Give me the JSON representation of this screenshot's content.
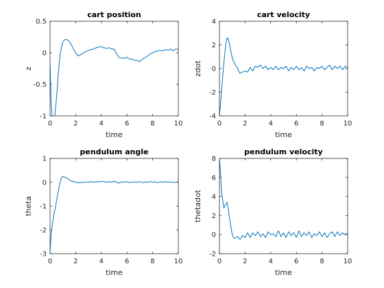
{
  "figure": {
    "background": "#ffffff",
    "line_color": "#0072bd",
    "axis_color": "#262626"
  },
  "chart_data": [
    {
      "id": "cart-position",
      "type": "line",
      "title": "cart position",
      "xlabel": "time",
      "ylabel": "z",
      "xlim": [
        0,
        10
      ],
      "ylim": [
        -1,
        0.5
      ],
      "xticks": [
        0,
        2,
        4,
        6,
        8,
        10
      ],
      "yticks": [
        -1,
        -0.5,
        0,
        0.5
      ],
      "ytick_labels": [
        "-1",
        "-0.5",
        "0",
        "0.5"
      ],
      "series": [
        {
          "x": [
            0,
            0.03,
            0.05,
            0.1,
            0.2,
            0.3,
            0.4,
            0.5,
            0.6,
            0.7,
            0.8,
            0.9,
            1.0,
            1.1,
            1.2,
            1.3,
            1.4,
            1.5,
            1.6,
            1.7,
            1.8,
            1.9,
            2.0,
            2.2,
            2.4,
            2.6,
            2.8,
            3.0,
            3.2,
            3.4,
            3.6,
            3.8,
            4.0,
            4.2,
            4.4,
            4.6,
            4.8,
            5.0,
            5.2,
            5.4,
            5.6,
            5.8,
            6.0,
            6.2,
            6.4,
            6.6,
            6.8,
            7.0,
            7.2,
            7.4,
            7.6,
            7.8,
            8.0,
            8.2,
            8.4,
            8.6,
            8.8,
            9.0,
            9.2,
            9.4,
            9.6,
            9.8,
            10.0
          ],
          "y": [
            -0.12,
            -0.35,
            -0.55,
            -0.85,
            -1.05,
            -1.08,
            -0.95,
            -0.72,
            -0.45,
            -0.2,
            -0.02,
            0.1,
            0.17,
            0.2,
            0.21,
            0.21,
            0.2,
            0.18,
            0.15,
            0.11,
            0.07,
            0.03,
            0.0,
            -0.05,
            -0.03,
            0.0,
            0.02,
            0.04,
            0.05,
            0.06,
            0.08,
            0.09,
            0.1,
            0.08,
            0.07,
            0.08,
            0.06,
            0.06,
            -0.02,
            -0.08,
            -0.08,
            -0.09,
            -0.07,
            -0.1,
            -0.1,
            -0.12,
            -0.12,
            -0.14,
            -0.1,
            -0.08,
            -0.05,
            -0.02,
            0.0,
            0.02,
            0.03,
            0.04,
            0.03,
            0.05,
            0.04,
            0.06,
            0.03,
            0.06,
            0.05
          ]
        }
      ]
    },
    {
      "id": "cart-velocity",
      "type": "line",
      "title": "cart velocity",
      "xlabel": "time",
      "ylabel": "zdot",
      "xlim": [
        0,
        10
      ],
      "ylim": [
        -4,
        4
      ],
      "xticks": [
        0,
        2,
        4,
        6,
        8,
        10
      ],
      "yticks": [
        -4,
        -2,
        0,
        2,
        4
      ],
      "ytick_labels": [
        "-4",
        "-2",
        "0",
        "2",
        "4"
      ],
      "series": [
        {
          "x": [
            0,
            0.1,
            0.2,
            0.3,
            0.4,
            0.5,
            0.6,
            0.7,
            0.8,
            0.9,
            1.0,
            1.1,
            1.2,
            1.3,
            1.4,
            1.5,
            1.6,
            1.8,
            2.0,
            2.2,
            2.4,
            2.6,
            2.8,
            3.0,
            3.2,
            3.4,
            3.6,
            3.8,
            4.0,
            4.2,
            4.4,
            4.6,
            4.8,
            5.0,
            5.2,
            5.4,
            5.6,
            5.8,
            6.0,
            6.2,
            6.4,
            6.6,
            6.8,
            7.0,
            7.2,
            7.4,
            7.6,
            7.8,
            8.0,
            8.2,
            8.4,
            8.6,
            8.8,
            9.0,
            9.2,
            9.4,
            9.6,
            9.8,
            10.0
          ],
          "y": [
            -4.0,
            -2.8,
            -1.4,
            -0.1,
            1.1,
            2.1,
            2.6,
            2.5,
            2.0,
            1.4,
            0.9,
            0.6,
            0.4,
            0.2,
            0.1,
            -0.2,
            -0.4,
            -0.3,
            -0.2,
            -0.3,
            0.1,
            -0.2,
            0.2,
            0.1,
            0.3,
            0.0,
            0.2,
            -0.1,
            0.1,
            -0.1,
            0.2,
            -0.1,
            0.1,
            0.0,
            0.2,
            -0.2,
            0.1,
            -0.1,
            0.2,
            -0.1,
            0.1,
            -0.2,
            0.2,
            0.0,
            0.1,
            -0.2,
            0.1,
            0.0,
            0.2,
            -0.1,
            0.1,
            0.3,
            -0.1,
            0.2,
            0.0,
            0.2,
            -0.1,
            0.2,
            0.0
          ]
        }
      ]
    },
    {
      "id": "pendulum-angle",
      "type": "line",
      "title": "pendulum angle",
      "xlabel": "time",
      "ylabel": "theta",
      "xlim": [
        0,
        10
      ],
      "ylim": [
        -3,
        1
      ],
      "xticks": [
        0,
        2,
        4,
        6,
        8,
        10
      ],
      "yticks": [
        -3,
        -2,
        -1,
        0,
        1
      ],
      "ytick_labels": [
        "-3",
        "-2",
        "-1",
        "0",
        "1"
      ],
      "series": [
        {
          "x": [
            0,
            0.05,
            0.1,
            0.2,
            0.3,
            0.4,
            0.5,
            0.6,
            0.7,
            0.8,
            0.9,
            1.0,
            1.1,
            1.2,
            1.3,
            1.4,
            1.5,
            1.6,
            1.8,
            2.0,
            2.2,
            2.4,
            2.6,
            2.8,
            3.0,
            3.2,
            3.4,
            3.6,
            3.8,
            4.0,
            4.2,
            4.4,
            4.6,
            4.8,
            5.0,
            5.2,
            5.4,
            5.6,
            5.8,
            6.0,
            6.2,
            6.4,
            6.6,
            6.8,
            7.0,
            7.2,
            7.4,
            7.6,
            7.8,
            8.0,
            8.2,
            8.4,
            8.6,
            8.8,
            9.0,
            9.2,
            9.4,
            9.6,
            9.8,
            10.0
          ],
          "y": [
            -3.0,
            -2.5,
            -2.1,
            -1.7,
            -1.35,
            -1.1,
            -0.8,
            -0.5,
            -0.22,
            0.05,
            0.2,
            0.24,
            0.22,
            0.2,
            0.18,
            0.14,
            0.1,
            0.06,
            0.03,
            0.0,
            -0.03,
            0.0,
            -0.02,
            0.02,
            0.0,
            0.03,
            0.0,
            0.02,
            0.01,
            0.04,
            0.02,
            0.0,
            0.03,
            0.0,
            0.04,
            0.0,
            -0.04,
            0.02,
            0.0,
            0.03,
            -0.02,
            0.0,
            0.02,
            -0.01,
            0.03,
            -0.02,
            0.01,
            -0.01,
            0.03,
            0.0,
            0.02,
            -0.02,
            0.02,
            0.0,
            0.03,
            0.0,
            0.02,
            -0.01,
            0.0,
            0.02
          ]
        }
      ]
    },
    {
      "id": "pendulum-velocity",
      "type": "line",
      "title": "pendulum velocity",
      "xlabel": "time",
      "ylabel": "thetadot",
      "xlim": [
        0,
        10
      ],
      "ylim": [
        -2,
        8
      ],
      "xticks": [
        0,
        2,
        4,
        6,
        8,
        10
      ],
      "yticks": [
        -2,
        0,
        2,
        4,
        6,
        8
      ],
      "ytick_labels": [
        "-2",
        "0",
        "2",
        "4",
        "6",
        "8"
      ],
      "series": [
        {
          "x": [
            0,
            0.05,
            0.1,
            0.15,
            0.2,
            0.25,
            0.3,
            0.35,
            0.4,
            0.5,
            0.6,
            0.7,
            0.8,
            0.9,
            1.0,
            1.1,
            1.2,
            1.4,
            1.6,
            1.8,
            2.0,
            2.2,
            2.4,
            2.6,
            2.8,
            3.0,
            3.2,
            3.4,
            3.6,
            3.8,
            4.0,
            4.2,
            4.4,
            4.6,
            4.8,
            5.0,
            5.2,
            5.4,
            5.6,
            5.8,
            6.0,
            6.2,
            6.4,
            6.6,
            6.8,
            7.0,
            7.2,
            7.4,
            7.6,
            7.8,
            8.0,
            8.2,
            8.4,
            8.6,
            8.8,
            9.0,
            9.2,
            9.4,
            9.6,
            9.8,
            10.0
          ],
          "y": [
            8.0,
            7.2,
            6.0,
            4.8,
            4.1,
            3.7,
            3.2,
            2.8,
            3.0,
            3.2,
            3.4,
            2.6,
            1.6,
            0.8,
            0.0,
            -0.3,
            -0.4,
            -0.2,
            -0.5,
            -0.1,
            -0.3,
            0.2,
            -0.3,
            0.2,
            -0.1,
            0.3,
            -0.2,
            0.1,
            -0.3,
            0.3,
            0.0,
            0.1,
            -0.2,
            0.4,
            -0.2,
            0.2,
            -0.3,
            0.3,
            -0.1,
            0.2,
            -0.3,
            0.4,
            -0.2,
            0.2,
            -0.1,
            0.3,
            -0.3,
            0.1,
            -0.1,
            0.3,
            -0.2,
            0.2,
            -0.3,
            0.1,
            0.3,
            -0.2,
            0.3,
            -0.1,
            0.2,
            0.0,
            0.2
          ]
        }
      ]
    }
  ]
}
